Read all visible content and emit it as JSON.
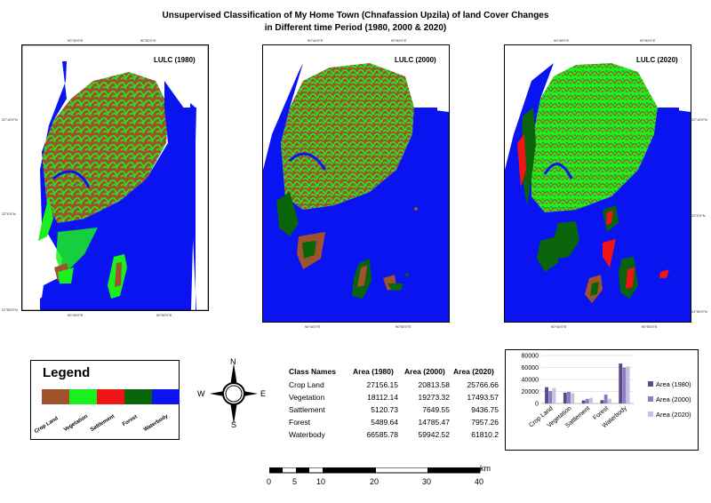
{
  "title_line1": "Unsupervised Classification of My Home Town (Chnafassion Upzila) of land Cover Changes",
  "title_line2": "in Different time Period (1980, 2000 & 2020)",
  "maps": [
    {
      "label": "LULC (1980)",
      "top_coords": [
        "90°45'0\"E",
        "90°50'0\"E"
      ],
      "bottom_coords": [
        "90°45'0\"E",
        "90°50'0\"E"
      ],
      "left_coords": [
        "22°10'0\"N",
        "22°0'0\"N",
        "21°50'0\"N"
      ]
    },
    {
      "label": "LULC (2000)",
      "top_coords": [
        "90°40'0\"E",
        "90°50'0\"E"
      ],
      "bottom_coords": [
        "90°40'0\"E",
        "90°50'0\"E"
      ]
    },
    {
      "label": "LULC (2020)",
      "top_coords": [
        "90°45'0\"E",
        "90°50'0\"E"
      ],
      "bottom_coords": [
        "90°40'0\"E",
        "90°50'0\"E"
      ],
      "right_coords": [
        "22°10'0\"N",
        "22°0'0\"N",
        "21°50'0\"N"
      ]
    }
  ],
  "legend": {
    "title": "Legend",
    "classes": [
      {
        "name": "Crop Land",
        "color": "#a0522d"
      },
      {
        "name": "Vegetation",
        "color": "#19f01e"
      },
      {
        "name": "Sattlement",
        "color": "#f01414"
      },
      {
        "name": "Forest",
        "color": "#0a640a"
      },
      {
        "name": "Waterbody",
        "color": "#0a14f0"
      }
    ]
  },
  "compass": {
    "n": "N",
    "s": "S",
    "e": "E",
    "w": "W"
  },
  "table": {
    "headers": [
      "Class Names",
      "Area (1980)",
      "Area (2000)",
      "Area (2020)"
    ],
    "rows": [
      [
        "Crop Land",
        "27156.15",
        "20813.58",
        "25766.66"
      ],
      [
        "Vegetation",
        "18112.14",
        "19273.32",
        "17493.57"
      ],
      [
        "Sattlement",
        "5120.73",
        "7649.55",
        "9436.75"
      ],
      [
        "Forest",
        "5489.64",
        "14785.47",
        "7957.26"
      ],
      [
        "Waterbody",
        "66585.78",
        "59942.52",
        "61810.2"
      ]
    ]
  },
  "chart_data": {
    "type": "bar",
    "categories": [
      "Crop Land",
      "Vegetation",
      "Sattlement",
      "Forest",
      "Waterbody"
    ],
    "series": [
      {
        "name": "Area (1980)",
        "values": [
          27156.15,
          18112.14,
          5120.73,
          5489.64,
          66585.78
        ],
        "color": "#5b4a8a"
      },
      {
        "name": "Area (2000)",
        "values": [
          20813.58,
          19273.32,
          7649.55,
          14785.47,
          59942.52
        ],
        "color": "#8e7cc3"
      },
      {
        "name": "Area (2020)",
        "values": [
          25766.66,
          17493.57,
          9436.75,
          7957.26,
          61810.2
        ],
        "color": "#c9bfe0"
      }
    ],
    "yticks": [
      "80000",
      "60000",
      "40000",
      "20000",
      "0"
    ],
    "ylim": [
      0,
      80000
    ],
    "legend_position": "right"
  },
  "scale_bar": {
    "unit": "km",
    "labels": [
      "0",
      "5",
      "10",
      "20",
      "30",
      "40"
    ]
  }
}
